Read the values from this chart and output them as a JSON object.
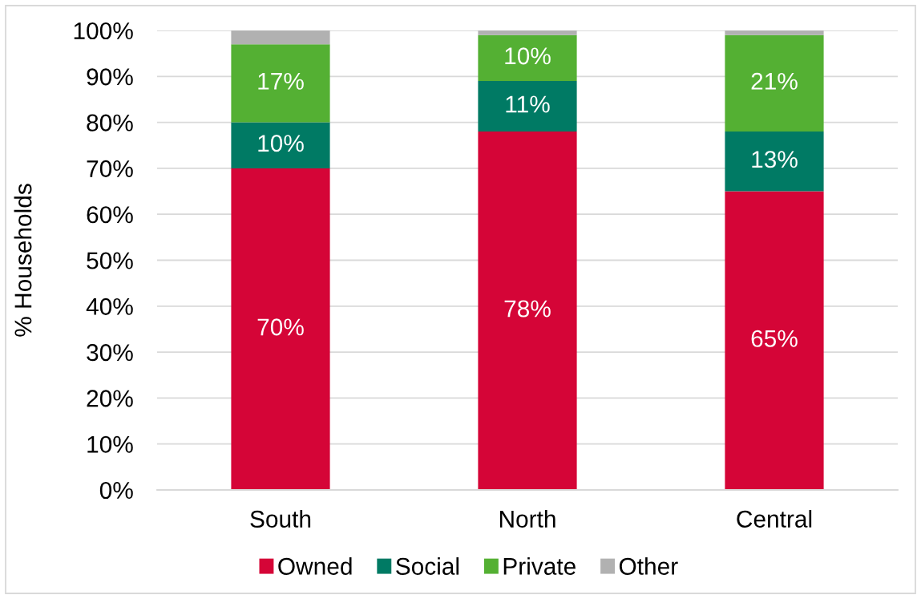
{
  "chart_data": {
    "type": "bar",
    "stacked": true,
    "ylabel": "% Households",
    "categories": [
      "South",
      "North",
      "Central"
    ],
    "series": [
      {
        "name": "Owned",
        "color": "#d50537",
        "values": [
          70,
          78,
          65
        ],
        "value_labels": [
          "70%",
          "78%",
          "65%"
        ]
      },
      {
        "name": "Social",
        "color": "#007a64",
        "values": [
          10,
          11,
          13
        ],
        "value_labels": [
          "10%",
          "11%",
          "13%"
        ]
      },
      {
        "name": "Private",
        "color": "#54b033",
        "values": [
          17,
          10,
          21
        ],
        "value_labels": [
          "17%",
          "10%",
          "21%"
        ]
      },
      {
        "name": "Other",
        "color": "#b1b1b1",
        "values": [
          3,
          1,
          1
        ]
      }
    ],
    "ylim": [
      0,
      100
    ],
    "yticks": [
      {
        "value": 0,
        "label": "0%"
      },
      {
        "value": 10,
        "label": "10%"
      },
      {
        "value": 20,
        "label": "20%"
      },
      {
        "value": 30,
        "label": "30%"
      },
      {
        "value": 40,
        "label": "40%"
      },
      {
        "value": 50,
        "label": "50%"
      },
      {
        "value": 60,
        "label": "60%"
      },
      {
        "value": 70,
        "label": "70%"
      },
      {
        "value": 80,
        "label": "80%"
      },
      {
        "value": 90,
        "label": "90%"
      },
      {
        "value": 100,
        "label": "100%"
      }
    ],
    "grid": "y",
    "legend": "bottom"
  }
}
